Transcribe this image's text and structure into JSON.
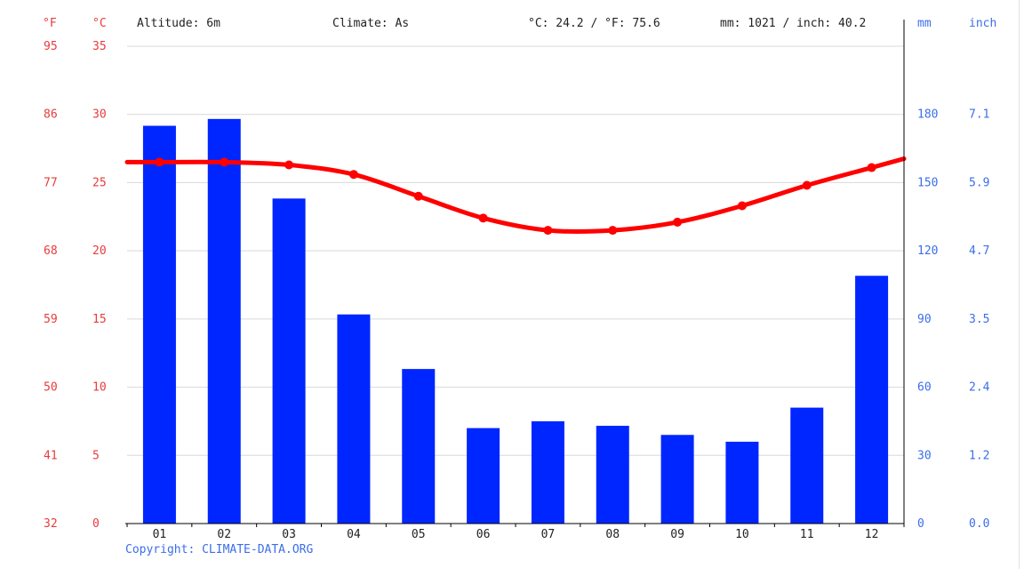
{
  "header": {
    "altitude": "Altitude: 6m",
    "climate": "Climate: As",
    "temp_summary": "°C: 24.2 / °F: 75.6",
    "precip_summary": "mm: 1021 / inch: 40.2"
  },
  "axes": {
    "left_f_unit": "°F",
    "left_c_unit": "°C",
    "right_mm_unit": "mm",
    "right_inch_unit": "inch",
    "f_ticks": [
      "32",
      "41",
      "50",
      "59",
      "68",
      "77",
      "86",
      "95"
    ],
    "c_ticks": [
      "0",
      "5",
      "10",
      "15",
      "20",
      "25",
      "30",
      "35"
    ],
    "mm_ticks": [
      "0",
      "30",
      "60",
      "90",
      "120",
      "150",
      "180"
    ],
    "inch_ticks": [
      "0.0",
      "1.2",
      "2.4",
      "3.5",
      "4.7",
      "5.9",
      "7.1"
    ]
  },
  "copyright": "Copyright: CLIMATE-DATA.ORG",
  "colors": {
    "temperature": "#ff0000",
    "precipitation": "#0026ff",
    "temp_axis": "#e83b3b",
    "precip_axis": "#3b6ee8"
  },
  "chart_data": {
    "type": "bar+line",
    "categories": [
      "01",
      "02",
      "03",
      "04",
      "05",
      "06",
      "07",
      "08",
      "09",
      "10",
      "11",
      "12"
    ],
    "series": [
      {
        "type": "bar",
        "unit": "mm",
        "axis": "right",
        "values": [
          175,
          178,
          143,
          92,
          68,
          42,
          45,
          43,
          39,
          36,
          51,
          109
        ]
      },
      {
        "type": "line",
        "unit": "°C",
        "axis": "left",
        "values": [
          26.5,
          26.5,
          26.3,
          25.6,
          24.0,
          22.4,
          21.5,
          21.5,
          22.1,
          23.3,
          24.8,
          26.1
        ]
      }
    ],
    "ylim_left_c": [
      0,
      35
    ],
    "ylim_left_f": [
      32,
      95
    ],
    "ylim_right_mm": [
      0,
      210
    ],
    "grid": true
  }
}
